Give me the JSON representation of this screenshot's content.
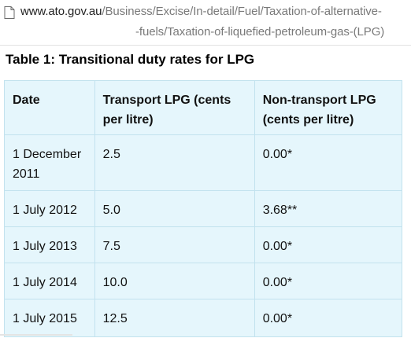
{
  "url": {
    "domain": "www.ato.gov.au",
    "path_line1": "/Business/Excise/In-detail/Fuel/Taxation-of-alternative-",
    "path_line2": "-fuels/Taxation-of-liquefied-petroleum-gas-(LPG)"
  },
  "table": {
    "title": "Table 1: Transitional duty rates for LPG",
    "headers": [
      "Date",
      "Transport LPG (cents per litre)",
      "Non-transport LPG (cents per litre)"
    ],
    "rows": [
      [
        "1 December 2011",
        "2.5",
        "0.00*"
      ],
      [
        "1 July 2012",
        "5.0",
        "3.68**"
      ],
      [
        "1 July 2013",
        "7.5",
        "0.00*"
      ],
      [
        "1 July 2014",
        "10.0",
        "0.00*"
      ],
      [
        "1 July 2015",
        "12.5",
        "0.00*"
      ]
    ]
  },
  "colors": {
    "table_bg": "#e5f6fc",
    "table_border": "#c2e2ee",
    "url_text": "#7a7a7a"
  }
}
